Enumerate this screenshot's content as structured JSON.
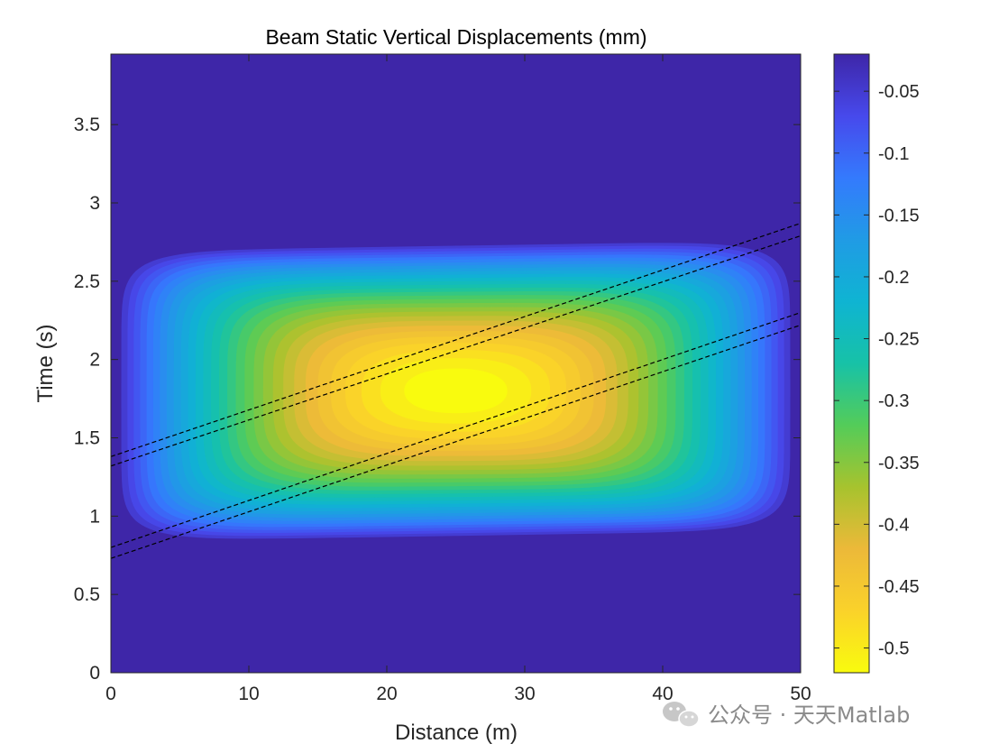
{
  "chart_data": {
    "type": "heatmap",
    "title": "Beam Static Vertical Displacements (mm)",
    "xlabel": "Distance (m)",
    "ylabel": "Time (s)",
    "xlim": [
      0,
      50
    ],
    "ylim": [
      0,
      3.95
    ],
    "x_ticks": [
      0,
      10,
      20,
      30,
      40,
      50
    ],
    "x_tick_labels": [
      "0",
      "10",
      "20",
      "30",
      "40",
      "50"
    ],
    "y_ticks": [
      0,
      0.5,
      1,
      1.5,
      2,
      2.5,
      3,
      3.5
    ],
    "y_tick_labels": [
      "0",
      "0.5",
      "1",
      "1.5",
      "2",
      "2.5",
      "3",
      "3.5"
    ],
    "field": {
      "description_values": "displacement contours",
      "min_value": -0.51,
      "max_value": -0.02,
      "peak_location": {
        "x": 25,
        "t": 1.8
      },
      "active_x_range": [
        0,
        50
      ],
      "active_t_range": [
        0.8,
        2.75
      ]
    },
    "colorbar": {
      "range": [
        -0.52,
        -0.02
      ],
      "ticks": [
        -0.05,
        -0.1,
        -0.15,
        -0.2,
        -0.25,
        -0.3,
        -0.35,
        -0.4,
        -0.45,
        -0.5
      ],
      "tick_labels": [
        "-0.05",
        "-0.1",
        "-0.15",
        "-0.2",
        "-0.25",
        "-0.3",
        "-0.35",
        "-0.4",
        "-0.45",
        "-0.5"
      ],
      "colormap": "parula"
    },
    "series": [
      {
        "name": "axle-line-1",
        "points": [
          [
            0,
            1.38
          ],
          [
            50,
            2.87
          ]
        ]
      },
      {
        "name": "axle-line-2",
        "points": [
          [
            0,
            1.32
          ],
          [
            50,
            2.79
          ]
        ]
      },
      {
        "name": "axle-line-3",
        "points": [
          [
            0,
            0.8
          ],
          [
            50,
            2.3
          ]
        ]
      },
      {
        "name": "axle-line-4",
        "points": [
          [
            0,
            0.73
          ],
          [
            50,
            2.22
          ]
        ]
      }
    ],
    "grid": false
  },
  "watermark": {
    "text": "公众号 · 天天Matlab"
  }
}
